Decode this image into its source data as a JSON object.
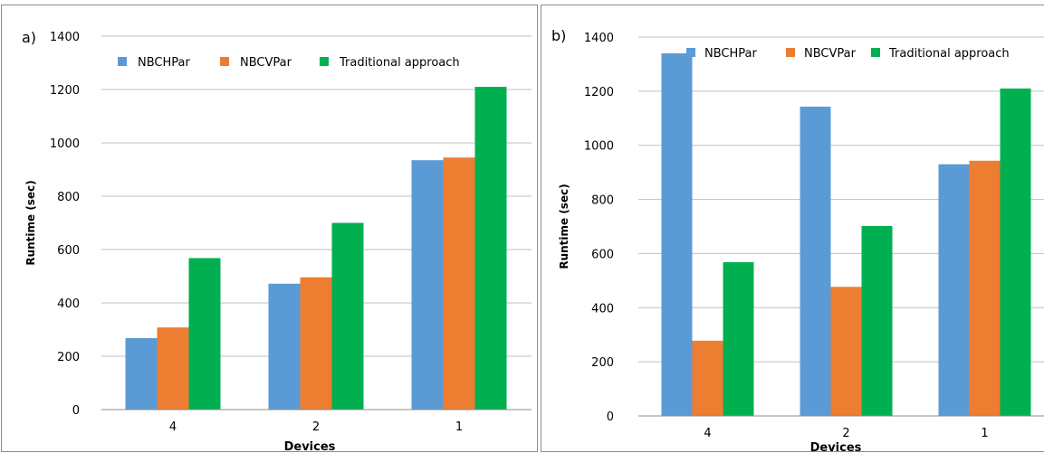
{
  "colors": {
    "series": [
      "#5b9bd5",
      "#ed7d31",
      "#00b050"
    ],
    "grid": "#bfbfbf",
    "axis": "#8c8c8c"
  },
  "chart_data": [
    {
      "type": "bar",
      "panel_label": "a)",
      "categories": [
        "4",
        "2",
        "1"
      ],
      "series": [
        {
          "name": "NBCHPar",
          "values": [
            268,
            472,
            935
          ]
        },
        {
          "name": "NBCVPar",
          "values": [
            308,
            496,
            945
          ]
        },
        {
          "name": "Traditional approach",
          "values": [
            568,
            700,
            1210
          ]
        }
      ],
      "xlabel": "Devices",
      "ylabel": "Runtime (sec)",
      "ylim": [
        0,
        1400
      ],
      "yticks": [
        0,
        200,
        400,
        600,
        800,
        1000,
        1200,
        1400
      ],
      "grid": true,
      "legend": "top"
    },
    {
      "type": "bar",
      "panel_label": "b)",
      "categories": [
        "4",
        "2",
        "1"
      ],
      "series": [
        {
          "name": "NBCHPar",
          "values": [
            1340,
            1143,
            930
          ]
        },
        {
          "name": "NBCVPar",
          "values": [
            278,
            477,
            943
          ]
        },
        {
          "name": "Traditional approach",
          "values": [
            568,
            702,
            1210
          ]
        }
      ],
      "xlabel": "Devices",
      "ylabel": "Runtime (sec)",
      "ylim": [
        0,
        1400
      ],
      "yticks": [
        0,
        200,
        400,
        600,
        800,
        1000,
        1200,
        1400
      ],
      "grid": true,
      "legend": "top"
    }
  ]
}
